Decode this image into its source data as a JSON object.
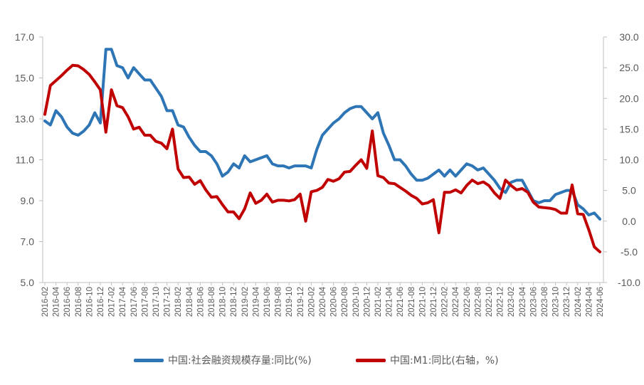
{
  "chart_data": {
    "type": "line",
    "title": "",
    "xlabel": "",
    "ylabel": "",
    "x": [
      "2016-02",
      "2016-03",
      "2016-04",
      "2016-05",
      "2016-06",
      "2016-07",
      "2016-08",
      "2016-09",
      "2016-10",
      "2016-11",
      "2016-12",
      "2017-01",
      "2017-02",
      "2017-03",
      "2017-04",
      "2017-05",
      "2017-06",
      "2017-07",
      "2017-08",
      "2017-09",
      "2017-10",
      "2017-11",
      "2017-12",
      "2018-01",
      "2018-02",
      "2018-03",
      "2018-04",
      "2018-05",
      "2018-06",
      "2018-07",
      "2018-08",
      "2018-09",
      "2018-10",
      "2018-11",
      "2018-12",
      "2019-01",
      "2019-02",
      "2019-03",
      "2019-04",
      "2019-05",
      "2019-06",
      "2019-07",
      "2019-08",
      "2019-09",
      "2019-10",
      "2019-11",
      "2019-12",
      "2020-01",
      "2020-02",
      "2020-03",
      "2020-04",
      "2020-05",
      "2020-06",
      "2020-07",
      "2020-08",
      "2020-09",
      "2020-10",
      "2020-11",
      "2020-12",
      "2021-01",
      "2021-02",
      "2021-03",
      "2021-04",
      "2021-05",
      "2021-06",
      "2021-07",
      "2021-08",
      "2021-09",
      "2021-10",
      "2021-11",
      "2021-12",
      "2022-01",
      "2022-02",
      "2022-03",
      "2022-04",
      "2022-05",
      "2022-06",
      "2022-07",
      "2022-08",
      "2022-09",
      "2022-10",
      "2022-11",
      "2022-12",
      "2023-01",
      "2023-02",
      "2023-03",
      "2023-04",
      "2023-05",
      "2023-06",
      "2023-07",
      "2023-08",
      "2023-09",
      "2023-10",
      "2023-11",
      "2023-12",
      "2024-01",
      "2024-02",
      "2024-03",
      "2024-04",
      "2024-05",
      "2024-06"
    ],
    "x_tick_labels": [
      "2016-02",
      "2016-04",
      "2016-06",
      "2016-08",
      "2016-10",
      "2016-12",
      "2017-02",
      "2017-04",
      "2017-06",
      "2017-08",
      "2017-10",
      "2017-12",
      "2018-02",
      "2018-04",
      "2018-06",
      "2018-08",
      "2018-10",
      "2018-12",
      "2019-02",
      "2019-04",
      "2019-06",
      "2019-08",
      "2019-10",
      "2019-12",
      "2020-02",
      "2020-04",
      "2020-06",
      "2020-08",
      "2020-10",
      "2020-12",
      "2021-02",
      "2021-04",
      "2021-06",
      "2021-08",
      "2021-10",
      "2021-12",
      "2022-02",
      "2022-04",
      "2022-06",
      "2022-08",
      "2022-10",
      "2022-12",
      "2023-02",
      "2023-04",
      "2023-06",
      "2023-08",
      "2023-10",
      "2023-12",
      "2024-02",
      "2024-04",
      "2024-06"
    ],
    "y_left": {
      "ylim": [
        5.0,
        17.0
      ],
      "ticks": [
        "5.0",
        "7.0",
        "9.0",
        "11.0",
        "13.0",
        "15.0",
        "17.0"
      ]
    },
    "y_right": {
      "ylim": [
        -10.0,
        30.0
      ],
      "ticks": [
        "-10.0",
        "-5.0",
        "0.0",
        "5.0",
        "10.0",
        "15.0",
        "20.0",
        "25.0",
        "30.0"
      ]
    },
    "grid": false,
    "legend_position": "bottom",
    "series": [
      {
        "name": "中国:社会融资规模存量:同比(%)",
        "axis": "left",
        "color": "#2E75B6",
        "values": [
          12.9,
          12.7,
          13.4,
          13.1,
          12.6,
          12.3,
          12.2,
          12.4,
          12.7,
          13.3,
          12.8,
          16.4,
          16.4,
          15.6,
          15.5,
          15.0,
          15.5,
          15.2,
          14.9,
          14.9,
          14.5,
          14.1,
          13.4,
          13.4,
          12.7,
          12.6,
          12.1,
          11.7,
          11.4,
          11.4,
          11.2,
          10.8,
          10.2,
          10.4,
          10.8,
          10.6,
          11.2,
          10.9,
          11.0,
          11.1,
          11.2,
          10.8,
          10.7,
          10.7,
          10.6,
          10.7,
          10.7,
          10.7,
          10.6,
          11.5,
          12.2,
          12.5,
          12.8,
          13.0,
          13.3,
          13.5,
          13.6,
          13.6,
          13.3,
          13.0,
          13.3,
          12.3,
          11.7,
          11.0,
          11.0,
          10.7,
          10.3,
          10.0,
          10.0,
          10.1,
          10.3,
          10.5,
          10.2,
          10.5,
          10.2,
          10.5,
          10.8,
          10.7,
          10.5,
          10.6,
          10.3,
          10.0,
          9.6,
          9.4,
          9.9,
          10.0,
          10.0,
          9.5,
          9.0,
          8.9,
          9.0,
          9.0,
          9.3,
          9.4,
          9.5,
          9.5,
          8.8,
          8.6,
          8.3,
          8.4,
          8.1
        ]
      },
      {
        "name": "中国:M1:同比(右轴，%)",
        "axis": "right",
        "color": "#C00000",
        "values": [
          17.4,
          22.1,
          22.9,
          23.7,
          24.6,
          25.4,
          25.3,
          24.7,
          23.9,
          22.7,
          21.4,
          14.5,
          21.4,
          18.8,
          18.5,
          17.0,
          15.0,
          15.3,
          14.0,
          14.0,
          13.0,
          12.7,
          11.8,
          15.0,
          8.5,
          7.1,
          7.2,
          6.0,
          6.6,
          5.1,
          3.9,
          4.0,
          2.7,
          1.5,
          1.5,
          0.4,
          2.0,
          4.6,
          2.9,
          3.4,
          4.4,
          3.1,
          3.4,
          3.4,
          3.3,
          3.5,
          4.4,
          0.0,
          4.8,
          5.0,
          5.5,
          6.8,
          6.5,
          6.9,
          8.0,
          8.1,
          9.1,
          10.0,
          8.6,
          14.7,
          7.4,
          7.1,
          6.2,
          6.1,
          5.5,
          4.9,
          4.2,
          3.7,
          2.8,
          3.0,
          3.5,
          -1.9,
          4.7,
          4.7,
          5.1,
          4.6,
          5.8,
          6.7,
          6.1,
          6.4,
          5.8,
          4.6,
          3.7,
          6.7,
          5.8,
          5.1,
          5.3,
          4.7,
          3.1,
          2.3,
          2.2,
          2.1,
          1.9,
          1.3,
          1.3,
          5.9,
          1.2,
          1.1,
          -1.4,
          -4.2,
          -5.0
        ]
      }
    ]
  }
}
